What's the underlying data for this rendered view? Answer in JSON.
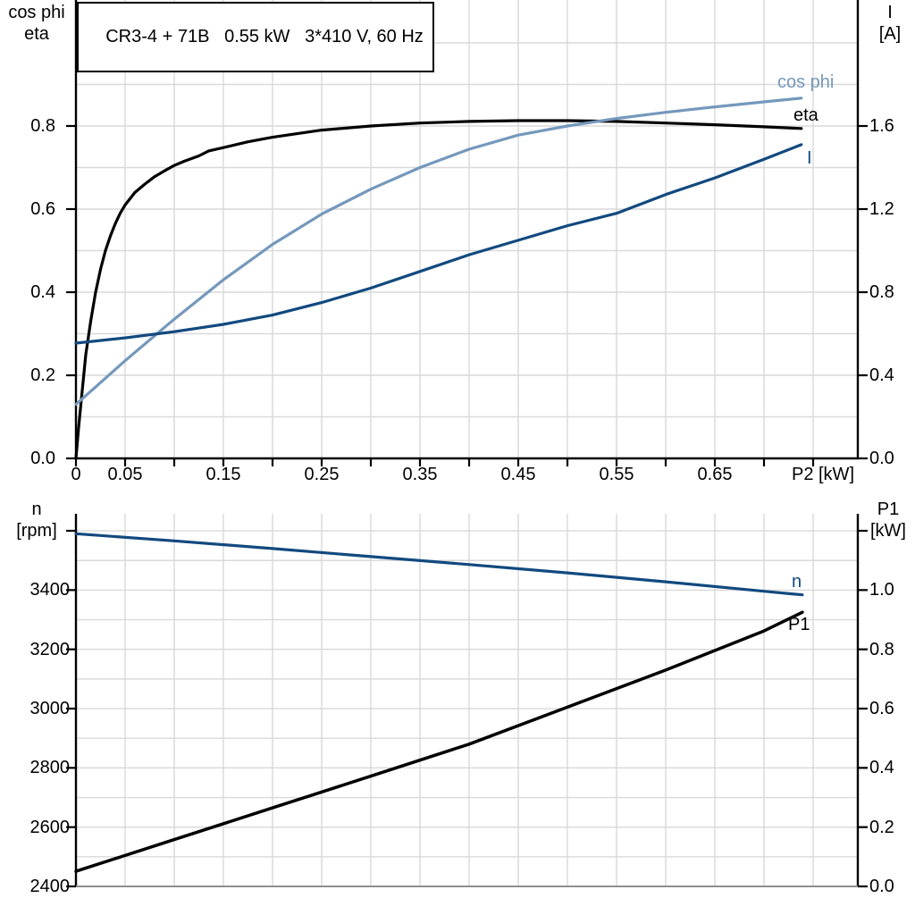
{
  "colors": {
    "eta": "#000000",
    "cos_phi": "#7598bc",
    "current": "#12497f",
    "speed": "#12497f",
    "p1": "#000000",
    "grid": "#d9d9d9",
    "axis": "#000000",
    "bottom_axis_gray": "#8f8f8f"
  },
  "chart_data": [
    {
      "type": "line",
      "title": "CR3-4 + 71B   0.55 kW   3*410 V, 60 Hz",
      "x_axis": {
        "label": "P2 [kW]",
        "min": 0,
        "max": 0.795,
        "tick_step": 0.05,
        "tick_labels": [
          "0",
          "0.05",
          "0.15",
          "0.25",
          "0.35",
          "0.45",
          "0.55",
          "0.65"
        ]
      },
      "y_left": {
        "label_line1": "cos phi",
        "label_line2": "eta",
        "min": 0,
        "max": 1.1,
        "tick_step": 0.2,
        "tick_labels": [
          "0.0",
          "0.2",
          "0.4",
          "0.6",
          "0.8"
        ]
      },
      "y_right": {
        "label_line1": "I",
        "label_line2": "[A]",
        "min": 0,
        "max": 2.2,
        "tick_step": 0.4,
        "tick_labels": [
          "0.0",
          "0.4",
          "0.8",
          "1.2",
          "1.6"
        ]
      },
      "grid": "on",
      "series": [
        {
          "name": "eta",
          "label": "eta",
          "axis": "left",
          "color_key": "eta",
          "width": 3.2,
          "points": [
            [
              0,
              0
            ],
            [
              0.0025,
              0.07
            ],
            [
              0.005,
              0.13
            ],
            [
              0.01,
              0.25
            ],
            [
              0.015,
              0.33
            ],
            [
              0.02,
              0.4
            ],
            [
              0.025,
              0.455
            ],
            [
              0.03,
              0.5
            ],
            [
              0.035,
              0.535
            ],
            [
              0.04,
              0.565
            ],
            [
              0.045,
              0.59
            ],
            [
              0.05,
              0.61
            ],
            [
              0.06,
              0.64
            ],
            [
              0.07,
              0.66
            ],
            [
              0.08,
              0.678
            ],
            [
              0.09,
              0.692
            ],
            [
              0.1,
              0.705
            ],
            [
              0.11,
              0.715
            ],
            [
              0.125,
              0.728
            ],
            [
              0.135,
              0.74
            ],
            [
              0.15,
              0.748
            ],
            [
              0.175,
              0.762
            ],
            [
              0.2,
              0.773
            ],
            [
              0.25,
              0.79
            ],
            [
              0.3,
              0.8
            ],
            [
              0.35,
              0.807
            ],
            [
              0.4,
              0.811
            ],
            [
              0.45,
              0.813
            ],
            [
              0.5,
              0.813
            ],
            [
              0.55,
              0.811
            ],
            [
              0.6,
              0.807
            ],
            [
              0.65,
              0.803
            ],
            [
              0.7,
              0.798
            ],
            [
              0.738,
              0.794
            ]
          ]
        },
        {
          "name": "cos phi",
          "label": "cos phi",
          "axis": "left",
          "color_key": "cos_phi",
          "width": 3.2,
          "points": [
            [
              0,
              0.13
            ],
            [
              0.05,
              0.235
            ],
            [
              0.1,
              0.335
            ],
            [
              0.15,
              0.43
            ],
            [
              0.2,
              0.515
            ],
            [
              0.25,
              0.588
            ],
            [
              0.3,
              0.648
            ],
            [
              0.35,
              0.7
            ],
            [
              0.4,
              0.744
            ],
            [
              0.45,
              0.778
            ],
            [
              0.5,
              0.8
            ],
            [
              0.55,
              0.818
            ],
            [
              0.6,
              0.833
            ],
            [
              0.65,
              0.846
            ],
            [
              0.7,
              0.858
            ],
            [
              0.738,
              0.867
            ]
          ]
        },
        {
          "name": "I",
          "label": "I",
          "axis": "right",
          "color_key": "current",
          "width": 3.2,
          "points": [
            [
              0,
              0.555
            ],
            [
              0.05,
              0.58
            ],
            [
              0.1,
              0.61
            ],
            [
              0.15,
              0.645
            ],
            [
              0.2,
              0.69
            ],
            [
              0.25,
              0.75
            ],
            [
              0.3,
              0.82
            ],
            [
              0.35,
              0.9
            ],
            [
              0.4,
              0.98
            ],
            [
              0.45,
              1.05
            ],
            [
              0.5,
              1.12
            ],
            [
              0.55,
              1.18
            ],
            [
              0.6,
              1.27
            ],
            [
              0.65,
              1.35
            ],
            [
              0.7,
              1.44
            ],
            [
              0.738,
              1.51
            ]
          ]
        }
      ]
    },
    {
      "type": "line",
      "title": "",
      "x_axis": {
        "label": "",
        "min": 0,
        "max": 0.795,
        "tick_step": 0.05,
        "tick_labels": []
      },
      "y_left": {
        "label_line1": "n",
        "label_line2": "[rpm]",
        "min": 2400,
        "max": 3657,
        "tick_step": 200,
        "tick_labels": [
          "2400",
          "2600",
          "2800",
          "3000",
          "3200",
          "3400"
        ]
      },
      "y_right": {
        "label_line1": "P1",
        "label_line2": "[kW]",
        "min": 0,
        "max": 1.257,
        "tick_step": 0.2,
        "tick_labels": [
          "0.0",
          "0.2",
          "0.4",
          "0.6",
          "0.8",
          "1.0"
        ]
      },
      "grid": "on",
      "series": [
        {
          "name": "n",
          "label": "n",
          "axis": "left",
          "color_key": "speed",
          "width": 3.2,
          "points": [
            [
              0,
              3590
            ],
            [
              0.1,
              3566
            ],
            [
              0.2,
              3540
            ],
            [
              0.3,
              3513
            ],
            [
              0.4,
              3486
            ],
            [
              0.5,
              3458
            ],
            [
              0.6,
              3428
            ],
            [
              0.7,
              3396
            ],
            [
              0.739,
              3384
            ]
          ]
        },
        {
          "name": "P1",
          "label": "P1",
          "axis": "right",
          "color_key": "p1",
          "width": 3.5,
          "points": [
            [
              0,
              0.051
            ],
            [
              0.1,
              0.158
            ],
            [
              0.2,
              0.265
            ],
            [
              0.3,
              0.372
            ],
            [
              0.4,
              0.48
            ],
            [
              0.5,
              0.605
            ],
            [
              0.6,
              0.73
            ],
            [
              0.7,
              0.862
            ],
            [
              0.739,
              0.925
            ]
          ]
        }
      ]
    }
  ]
}
